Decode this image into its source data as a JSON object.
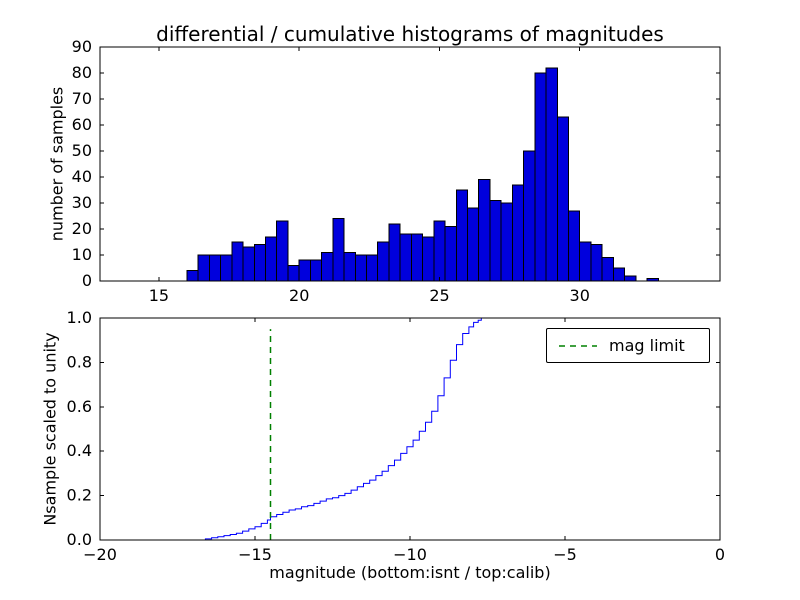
{
  "colors": {
    "background": "#ffffff",
    "bar_fill": "#0000dd",
    "bar_edge": "#000000",
    "line": "#0000ff",
    "mag_limit": "#008000",
    "frame": "#000000",
    "text": "#000000"
  },
  "chart_data": [
    {
      "type": "bar",
      "title": "differential / cumulative histograms of magnitudes",
      "ylabel": "number of samples",
      "xlim": [
        12.9,
        35.0
      ],
      "ylim": [
        0,
        90
      ],
      "xticks": [
        15,
        20,
        25,
        30
      ],
      "xtick_labels": [
        "15",
        "20",
        "25",
        "30"
      ],
      "yticks": [
        0,
        10,
        20,
        30,
        40,
        50,
        60,
        70,
        80,
        90
      ],
      "ytick_labels": [
        "0",
        "10",
        "20",
        "30",
        "40",
        "50",
        "60",
        "70",
        "80",
        "90"
      ],
      "grid": false,
      "bin_start": 16.0,
      "bin_width": 0.4,
      "counts": [
        4,
        10,
        10,
        10,
        15,
        13,
        14,
        17,
        23,
        6,
        8,
        8,
        11,
        24,
        11,
        10,
        10,
        15,
        22,
        18,
        18,
        17,
        23,
        21,
        35,
        28,
        39,
        31,
        30,
        37,
        50,
        80,
        82,
        63,
        27,
        15,
        14,
        9,
        5,
        2,
        0,
        1
      ]
    },
    {
      "type": "line",
      "style": "step",
      "ylabel": "Nsample scaled to unity",
      "xlabel": "magnitude (bottom:isnt / top:calib)",
      "xlim": [
        -20,
        0
      ],
      "ylim": [
        0,
        1.0
      ],
      "xticks": [
        -20,
        -15,
        -10,
        -5,
        0
      ],
      "xtick_labels": [
        "−20",
        "−15",
        "−10",
        "−5",
        "0"
      ],
      "yticks": [
        0,
        0.2,
        0.4,
        0.6,
        0.8,
        1.0
      ],
      "ytick_labels": [
        "0.0",
        "0.2",
        "0.4",
        "0.6",
        "0.8",
        "1.0"
      ],
      "grid": false,
      "legend_label": "mag limit",
      "legend_position": "upper right",
      "mag_limit_x": -14.5,
      "mag_limit_ymax": 0.95,
      "steps": [
        [
          -17.0,
          0.0
        ],
        [
          -16.6,
          0.005
        ],
        [
          -16.4,
          0.01
        ],
        [
          -16.2,
          0.015
        ],
        [
          -16.0,
          0.02
        ],
        [
          -15.8,
          0.025
        ],
        [
          -15.6,
          0.03
        ],
        [
          -15.4,
          0.04
        ],
        [
          -15.2,
          0.05
        ],
        [
          -15.0,
          0.06
        ],
        [
          -14.8,
          0.075
        ],
        [
          -14.6,
          0.09
        ],
        [
          -14.5,
          0.105
        ],
        [
          -14.3,
          0.115
        ],
        [
          -14.1,
          0.125
        ],
        [
          -13.9,
          0.135
        ],
        [
          -13.7,
          0.14
        ],
        [
          -13.5,
          0.15
        ],
        [
          -13.3,
          0.155
        ],
        [
          -13.1,
          0.165
        ],
        [
          -12.9,
          0.175
        ],
        [
          -12.7,
          0.185
        ],
        [
          -12.5,
          0.19
        ],
        [
          -12.3,
          0.2
        ],
        [
          -12.1,
          0.21
        ],
        [
          -11.9,
          0.225
        ],
        [
          -11.7,
          0.24
        ],
        [
          -11.5,
          0.255
        ],
        [
          -11.3,
          0.27
        ],
        [
          -11.1,
          0.29
        ],
        [
          -10.9,
          0.31
        ],
        [
          -10.7,
          0.335
        ],
        [
          -10.5,
          0.36
        ],
        [
          -10.3,
          0.39
        ],
        [
          -10.1,
          0.42
        ],
        [
          -9.9,
          0.45
        ],
        [
          -9.7,
          0.49
        ],
        [
          -9.5,
          0.53
        ],
        [
          -9.3,
          0.58
        ],
        [
          -9.1,
          0.65
        ],
        [
          -8.9,
          0.73
        ],
        [
          -8.7,
          0.81
        ],
        [
          -8.5,
          0.88
        ],
        [
          -8.3,
          0.93
        ],
        [
          -8.1,
          0.96
        ],
        [
          -7.95,
          0.98
        ],
        [
          -7.8,
          0.99
        ],
        [
          -7.7,
          1.0
        ],
        [
          0,
          1.0
        ]
      ]
    }
  ]
}
